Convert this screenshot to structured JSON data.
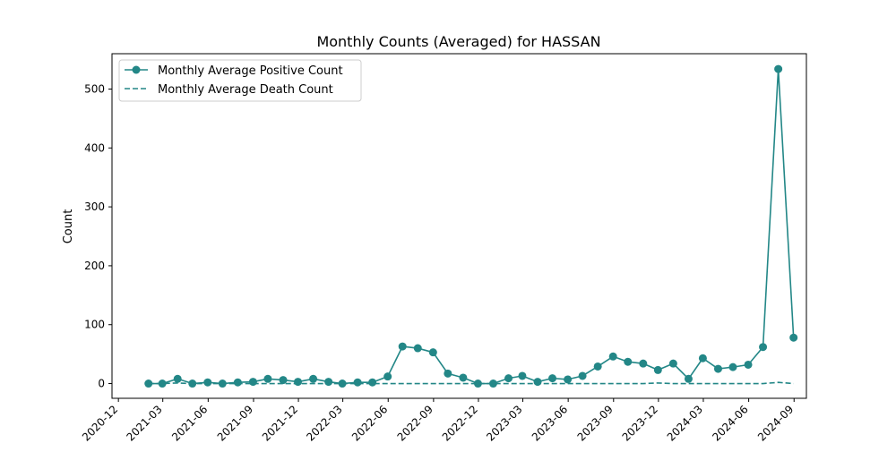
{
  "chart_data": {
    "type": "line",
    "title": "Monthly Counts (Averaged) for HASSAN",
    "xlabel": "",
    "ylabel": "Count",
    "x_ticks": [
      "2020-12",
      "2021-03",
      "2021-06",
      "2021-09",
      "2021-12",
      "2022-03",
      "2022-06",
      "2022-09",
      "2022-12",
      "2023-03",
      "2023-06",
      "2023-09",
      "2023-12",
      "2024-03",
      "2024-06",
      "2024-09"
    ],
    "y_ticks": [
      0,
      100,
      200,
      300,
      400,
      500
    ],
    "ylim": [
      -25,
      560
    ],
    "xlim": [
      "2020-11-18",
      "2024-09-26"
    ],
    "grid": false,
    "legend_position": "top-left",
    "x": [
      "2021-01-31",
      "2021-02-28",
      "2021-03-31",
      "2021-04-30",
      "2021-05-31",
      "2021-06-30",
      "2021-07-31",
      "2021-08-31",
      "2021-09-30",
      "2021-10-31",
      "2021-11-30",
      "2021-12-31",
      "2022-01-31",
      "2022-02-28",
      "2022-03-31",
      "2022-04-30",
      "2022-05-31",
      "2022-06-30",
      "2022-07-31",
      "2022-08-31",
      "2022-09-30",
      "2022-10-31",
      "2022-11-30",
      "2022-12-31",
      "2023-01-31",
      "2023-02-28",
      "2023-03-31",
      "2023-04-30",
      "2023-05-31",
      "2023-06-30",
      "2023-07-31",
      "2023-08-31",
      "2023-09-30",
      "2023-10-31",
      "2023-11-30",
      "2023-12-31",
      "2024-01-31",
      "2024-02-29",
      "2024-03-31",
      "2024-04-30",
      "2024-05-31",
      "2024-06-30",
      "2024-07-31",
      "2024-08-31"
    ],
    "series": [
      {
        "name": "Monthly Average Positive Count",
        "style": "solid-marker",
        "color": "#238787",
        "values": [
          0,
          0,
          8,
          0,
          2,
          0,
          2,
          3,
          8,
          6,
          3,
          8,
          3,
          0,
          2,
          2,
          12,
          63,
          60,
          53,
          17,
          10,
          0,
          0,
          9,
          13,
          3,
          9,
          7,
          13,
          29,
          46,
          37,
          34,
          23,
          34,
          8,
          43,
          25,
          28,
          32,
          62,
          534,
          78
        ]
      },
      {
        "name": "Monthly Average Death Count",
        "style": "dashed",
        "color": "#238787",
        "values": [
          0,
          0,
          1,
          0,
          0,
          0,
          0,
          0,
          0,
          0,
          0,
          0,
          0,
          0,
          0,
          0,
          0,
          0,
          0,
          0,
          0,
          0,
          0,
          0,
          0,
          0,
          0,
          0,
          0,
          0,
          0,
          0,
          0,
          0,
          1,
          0,
          0,
          0,
          0,
          0,
          0,
          0,
          2,
          0
        ]
      }
    ]
  }
}
